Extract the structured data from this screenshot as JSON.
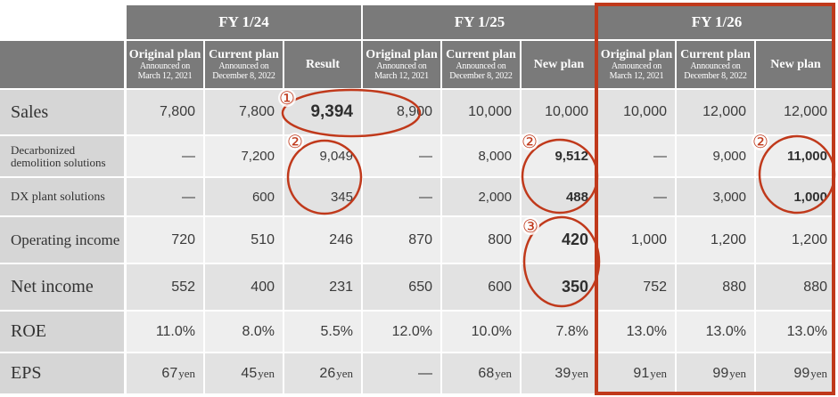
{
  "groups": [
    {
      "label": "FY 1/24"
    },
    {
      "label": "FY 1/25"
    },
    {
      "label": "FY 1/26"
    }
  ],
  "subheaders": [
    {
      "title": "Original plan",
      "note1": "Announced on",
      "note2": "March 12, 2021"
    },
    {
      "title": "Current plan",
      "note1": "Announced on",
      "note2": "December 8, 2022"
    },
    {
      "title": "Result",
      "note1": "",
      "note2": ""
    },
    {
      "title": "Original plan",
      "note1": "Announced on",
      "note2": "March 12, 2021"
    },
    {
      "title": "Current plan",
      "note1": "Announced on",
      "note2": "December 8, 2022"
    },
    {
      "title": "New plan",
      "note1": "",
      "note2": ""
    },
    {
      "title": "Original plan",
      "note1": "Announced on",
      "note2": "March 12, 2021"
    },
    {
      "title": "Current plan",
      "note1": "Announced on",
      "note2": "December 8, 2022"
    },
    {
      "title": "New plan",
      "note1": "",
      "note2": ""
    }
  ],
  "rows": [
    {
      "label": "Sales",
      "values": [
        "7,800",
        "7,800",
        "9,394",
        "8,900",
        "10,000",
        "10,000",
        "10,000",
        "12,000",
        "12,000"
      ],
      "bold": [
        2
      ]
    },
    {
      "label": "Decarbonized demolition solutions",
      "values": [
        "—",
        "7,200",
        "9,049",
        "—",
        "8,000",
        "9,512",
        "—",
        "9,000",
        "11,000"
      ],
      "bold": [
        5,
        8
      ]
    },
    {
      "label": "DX plant solutions",
      "values": [
        "—",
        "600",
        "345",
        "—",
        "2,000",
        "488",
        "—",
        "3,000",
        "1,000"
      ],
      "bold": [
        5,
        8
      ]
    },
    {
      "label": "Operating income",
      "values": [
        "720",
        "510",
        "246",
        "870",
        "800",
        "420",
        "1,000",
        "1,200",
        "1,200"
      ],
      "bold": [
        5
      ]
    },
    {
      "label": "Net income",
      "values": [
        "552",
        "400",
        "231",
        "650",
        "600",
        "350",
        "752",
        "880",
        "880"
      ],
      "bold": [
        5
      ]
    },
    {
      "label": "ROE",
      "values": [
        "11.0%",
        "8.0%",
        "5.5%",
        "12.0%",
        "10.0%",
        "7.8%",
        "13.0%",
        "13.0%",
        "13.0%"
      ],
      "bold": []
    },
    {
      "label": "EPS",
      "values": [
        "67",
        "45",
        "26",
        "—",
        "68",
        "39",
        "91",
        "99",
        "99"
      ],
      "units": [
        "yen",
        "yen",
        "yen",
        "",
        "yen",
        "yen",
        "yen",
        "yen",
        "yen"
      ],
      "bold": []
    }
  ],
  "annotations": [
    {
      "marker": "①"
    },
    {
      "marker": "②"
    },
    {
      "marker": "②"
    },
    {
      "marker": "③"
    },
    {
      "marker": "②"
    }
  ],
  "colors": {
    "header_bg": "#7a7a7a",
    "row_label_bg": "#d6d6d6",
    "row_dark": "#e2e2e2",
    "row_light": "#eeeeee",
    "highlight": "#c0391b"
  }
}
